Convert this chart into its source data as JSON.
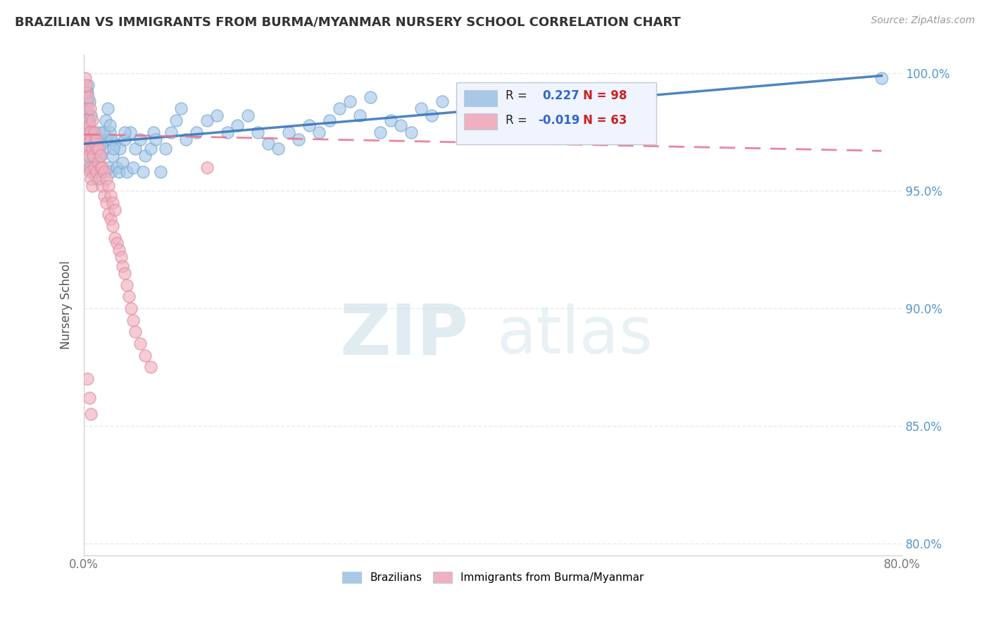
{
  "title": "BRAZILIAN VS IMMIGRANTS FROM BURMA/MYANMAR NURSERY SCHOOL CORRELATION CHART",
  "source_text": "Source: ZipAtlas.com",
  "ylabel": "Nursery School",
  "xmin": 0.0,
  "xmax": 0.8,
  "ymin": 0.795,
  "ymax": 1.008,
  "yticks": [
    1.0,
    0.95,
    0.9,
    0.85,
    0.8
  ],
  "ytick_labels": [
    "100.0%",
    "95.0%",
    "90.0%",
    "85.0%",
    "80.0%"
  ],
  "xticks": [
    0.0,
    0.1,
    0.2,
    0.3,
    0.4,
    0.5,
    0.6,
    0.7,
    0.8
  ],
  "xtick_labels": [
    "0.0%",
    "",
    "",
    "",
    "",
    "",
    "",
    "",
    "80.0%"
  ],
  "blue_R": 0.227,
  "blue_N": 98,
  "pink_R": -0.019,
  "pink_N": 63,
  "blue_color": "#a8c8e8",
  "blue_edge_color": "#7aaad0",
  "pink_color": "#f0b0c0",
  "pink_edge_color": "#e090a0",
  "blue_line_color": "#3070b8",
  "pink_line_color": "#e87090",
  "legend_box_color": "#f0f4ff",
  "legend_border_color": "#c0c8d8",
  "watermark_zip_color": "#c8dce8",
  "watermark_atlas_color": "#c8dce8",
  "background_color": "#ffffff",
  "grid_color": "#e8e8e8",
  "blue_trend_x0": 0.0,
  "blue_trend_y0": 0.97,
  "blue_trend_x1": 0.78,
  "blue_trend_y1": 0.999,
  "pink_trend_x0": 0.0,
  "pink_trend_y0": 0.974,
  "pink_trend_x1": 0.78,
  "pink_trend_y1": 0.967,
  "blue_scatter_x": [
    0.001,
    0.001,
    0.002,
    0.002,
    0.002,
    0.003,
    0.003,
    0.003,
    0.004,
    0.004,
    0.004,
    0.005,
    0.005,
    0.006,
    0.006,
    0.007,
    0.007,
    0.008,
    0.008,
    0.009,
    0.009,
    0.01,
    0.01,
    0.012,
    0.012,
    0.014,
    0.015,
    0.016,
    0.018,
    0.02,
    0.022,
    0.024,
    0.025,
    0.026,
    0.028,
    0.03,
    0.032,
    0.034,
    0.035,
    0.038,
    0.04,
    0.042,
    0.045,
    0.048,
    0.05,
    0.055,
    0.058,
    0.06,
    0.065,
    0.068,
    0.07,
    0.075,
    0.08,
    0.085,
    0.09,
    0.095,
    0.1,
    0.11,
    0.12,
    0.13,
    0.14,
    0.15,
    0.16,
    0.17,
    0.18,
    0.19,
    0.2,
    0.21,
    0.22,
    0.23,
    0.24,
    0.25,
    0.26,
    0.27,
    0.28,
    0.29,
    0.3,
    0.31,
    0.32,
    0.33,
    0.34,
    0.35,
    0.003,
    0.005,
    0.007,
    0.009,
    0.011,
    0.013,
    0.015,
    0.017,
    0.019,
    0.021,
    0.023,
    0.025,
    0.027,
    0.029,
    0.04,
    0.78
  ],
  "blue_scatter_y": [
    0.99,
    0.985,
    0.992,
    0.982,
    0.975,
    0.988,
    0.972,
    0.968,
    0.978,
    0.97,
    0.995,
    0.965,
    0.98,
    0.975,
    0.96,
    0.972,
    0.962,
    0.968,
    0.958,
    0.975,
    0.96,
    0.97,
    0.965,
    0.968,
    0.955,
    0.972,
    0.975,
    0.965,
    0.958,
    0.968,
    0.972,
    0.96,
    0.975,
    0.958,
    0.965,
    0.97,
    0.96,
    0.958,
    0.968,
    0.962,
    0.972,
    0.958,
    0.975,
    0.96,
    0.968,
    0.972,
    0.958,
    0.965,
    0.968,
    0.975,
    0.972,
    0.958,
    0.968,
    0.975,
    0.98,
    0.985,
    0.972,
    0.975,
    0.98,
    0.982,
    0.975,
    0.978,
    0.982,
    0.975,
    0.97,
    0.968,
    0.975,
    0.972,
    0.978,
    0.975,
    0.98,
    0.985,
    0.988,
    0.982,
    0.99,
    0.975,
    0.98,
    0.978,
    0.975,
    0.985,
    0.982,
    0.988,
    0.992,
    0.988,
    0.982,
    0.975,
    0.972,
    0.968,
    0.965,
    0.97,
    0.975,
    0.98,
    0.985,
    0.978,
    0.972,
    0.968,
    0.975,
    0.998
  ],
  "pink_scatter_x": [
    0.001,
    0.001,
    0.002,
    0.002,
    0.003,
    0.003,
    0.004,
    0.004,
    0.005,
    0.005,
    0.006,
    0.006,
    0.007,
    0.007,
    0.008,
    0.008,
    0.009,
    0.01,
    0.01,
    0.012,
    0.012,
    0.014,
    0.015,
    0.016,
    0.018,
    0.02,
    0.022,
    0.024,
    0.026,
    0.028,
    0.03,
    0.032,
    0.034,
    0.036,
    0.038,
    0.04,
    0.042,
    0.044,
    0.046,
    0.048,
    0.05,
    0.055,
    0.06,
    0.065,
    0.002,
    0.004,
    0.006,
    0.008,
    0.01,
    0.012,
    0.014,
    0.016,
    0.018,
    0.02,
    0.022,
    0.024,
    0.026,
    0.028,
    0.03,
    0.12,
    0.003,
    0.005,
    0.007
  ],
  "pink_scatter_y": [
    0.998,
    0.975,
    0.992,
    0.97,
    0.985,
    0.968,
    0.98,
    0.965,
    0.978,
    0.96,
    0.975,
    0.958,
    0.972,
    0.955,
    0.968,
    0.952,
    0.965,
    0.97,
    0.96,
    0.968,
    0.958,
    0.962,
    0.955,
    0.96,
    0.952,
    0.948,
    0.945,
    0.94,
    0.938,
    0.935,
    0.93,
    0.928,
    0.925,
    0.922,
    0.918,
    0.915,
    0.91,
    0.905,
    0.9,
    0.895,
    0.89,
    0.885,
    0.88,
    0.875,
    0.995,
    0.99,
    0.985,
    0.98,
    0.975,
    0.972,
    0.968,
    0.965,
    0.96,
    0.958,
    0.955,
    0.952,
    0.948,
    0.945,
    0.942,
    0.96,
    0.87,
    0.862,
    0.855
  ]
}
